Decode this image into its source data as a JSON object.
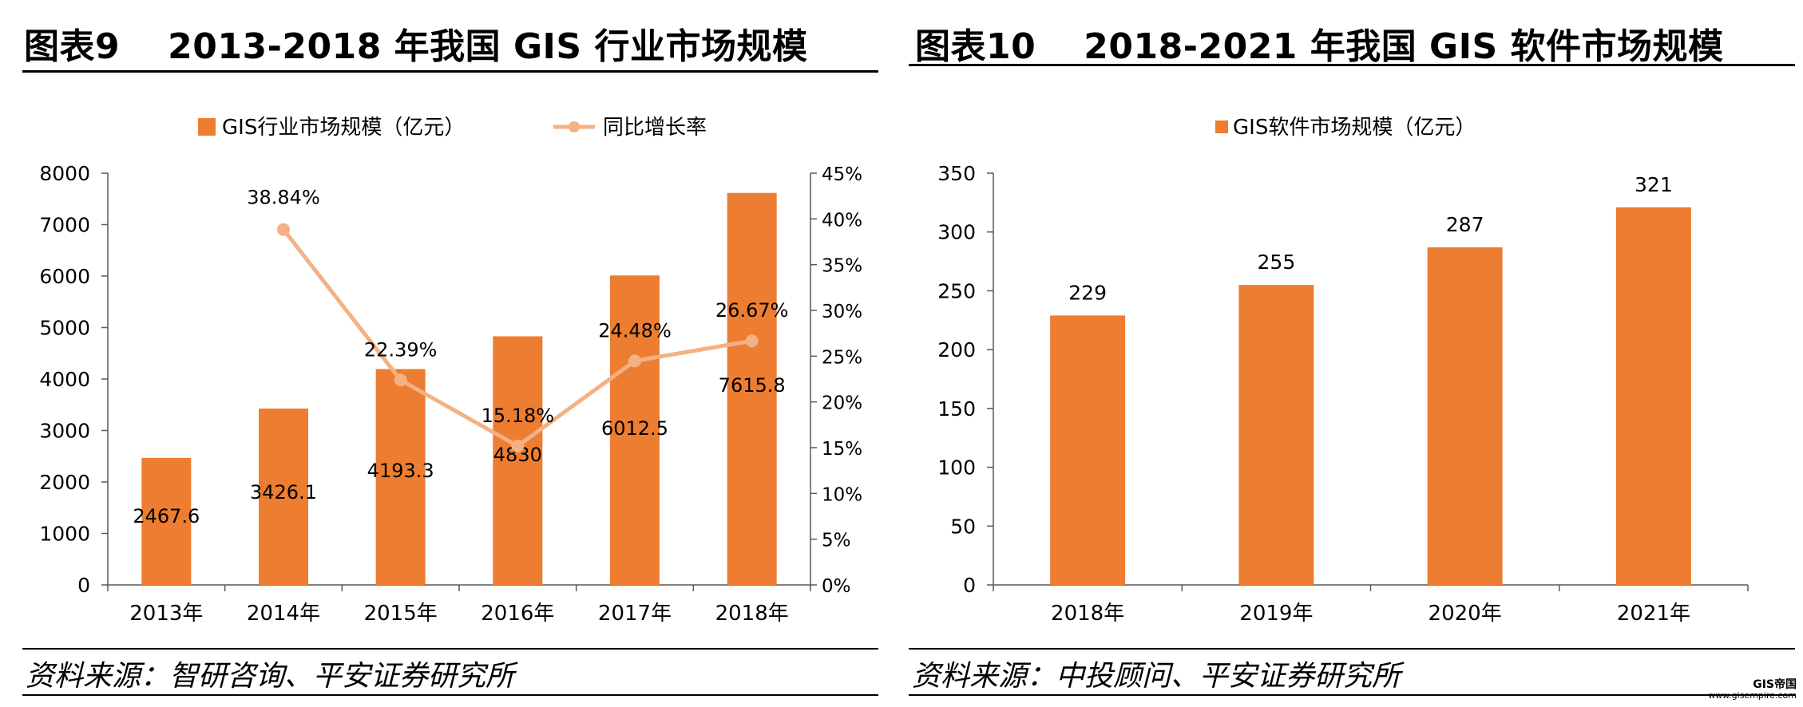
{
  "colors": {
    "bar": "#ED7D31",
    "line": "#F4B183",
    "axis": "#595959",
    "text": "#000000"
  },
  "figures": [
    {
      "number": "图表9",
      "title": "2013-2018 年我国 GIS 行业市场规模",
      "source": "资料来源：智研咨询、平安证券研究所"
    },
    {
      "number": "图表10",
      "title": "2018-2021 年我国 GIS 软件市场规模",
      "source": "资料来源：中投顾问、平安证券研究所"
    }
  ],
  "chart_data": [
    {
      "type": "bar",
      "categories": [
        "2013年",
        "2014年",
        "2015年",
        "2016年",
        "2017年",
        "2018年"
      ],
      "series": [
        {
          "name": "GIS行业市场规模（亿元）",
          "type": "bar",
          "axis": "left",
          "values": [
            2467.6,
            3426.1,
            4193.3,
            4830,
            6012.5,
            7615.8
          ],
          "labels": [
            "2467.6",
            "3426.1",
            "4193.3",
            "4830",
            "6012.5",
            "7615.8"
          ]
        },
        {
          "name": "同比增长率",
          "type": "line",
          "axis": "right",
          "values": [
            null,
            38.84,
            22.39,
            15.18,
            24.48,
            26.67
          ],
          "labels": [
            "",
            "38.84%",
            "22.39%",
            "15.18%",
            "24.48%",
            "26.67%"
          ]
        }
      ],
      "ylim": [
        0,
        8000
      ],
      "yticks": [
        "0",
        "1000",
        "2000",
        "3000",
        "4000",
        "5000",
        "6000",
        "7000",
        "8000"
      ],
      "y2lim": [
        0,
        45
      ],
      "y2ticks": [
        "0%",
        "5%",
        "10%",
        "15%",
        "20%",
        "25%",
        "30%",
        "35%",
        "40%",
        "45%"
      ],
      "legend": "top-center",
      "grid": false
    },
    {
      "type": "bar",
      "categories": [
        "2018年",
        "2019年",
        "2020年",
        "2021年"
      ],
      "series": [
        {
          "name": "GIS软件市场规模（亿元）",
          "values": [
            229,
            255,
            287,
            321
          ],
          "labels": [
            "229",
            "255",
            "287",
            "321"
          ]
        }
      ],
      "ylim": [
        0,
        350
      ],
      "yticks": [
        "0",
        "50",
        "100",
        "150",
        "200",
        "250",
        "300",
        "350"
      ],
      "legend": "top-center",
      "grid": false
    }
  ],
  "watermark": {
    "brand": "GIS帝国",
    "url": "www.gisempire.com"
  }
}
